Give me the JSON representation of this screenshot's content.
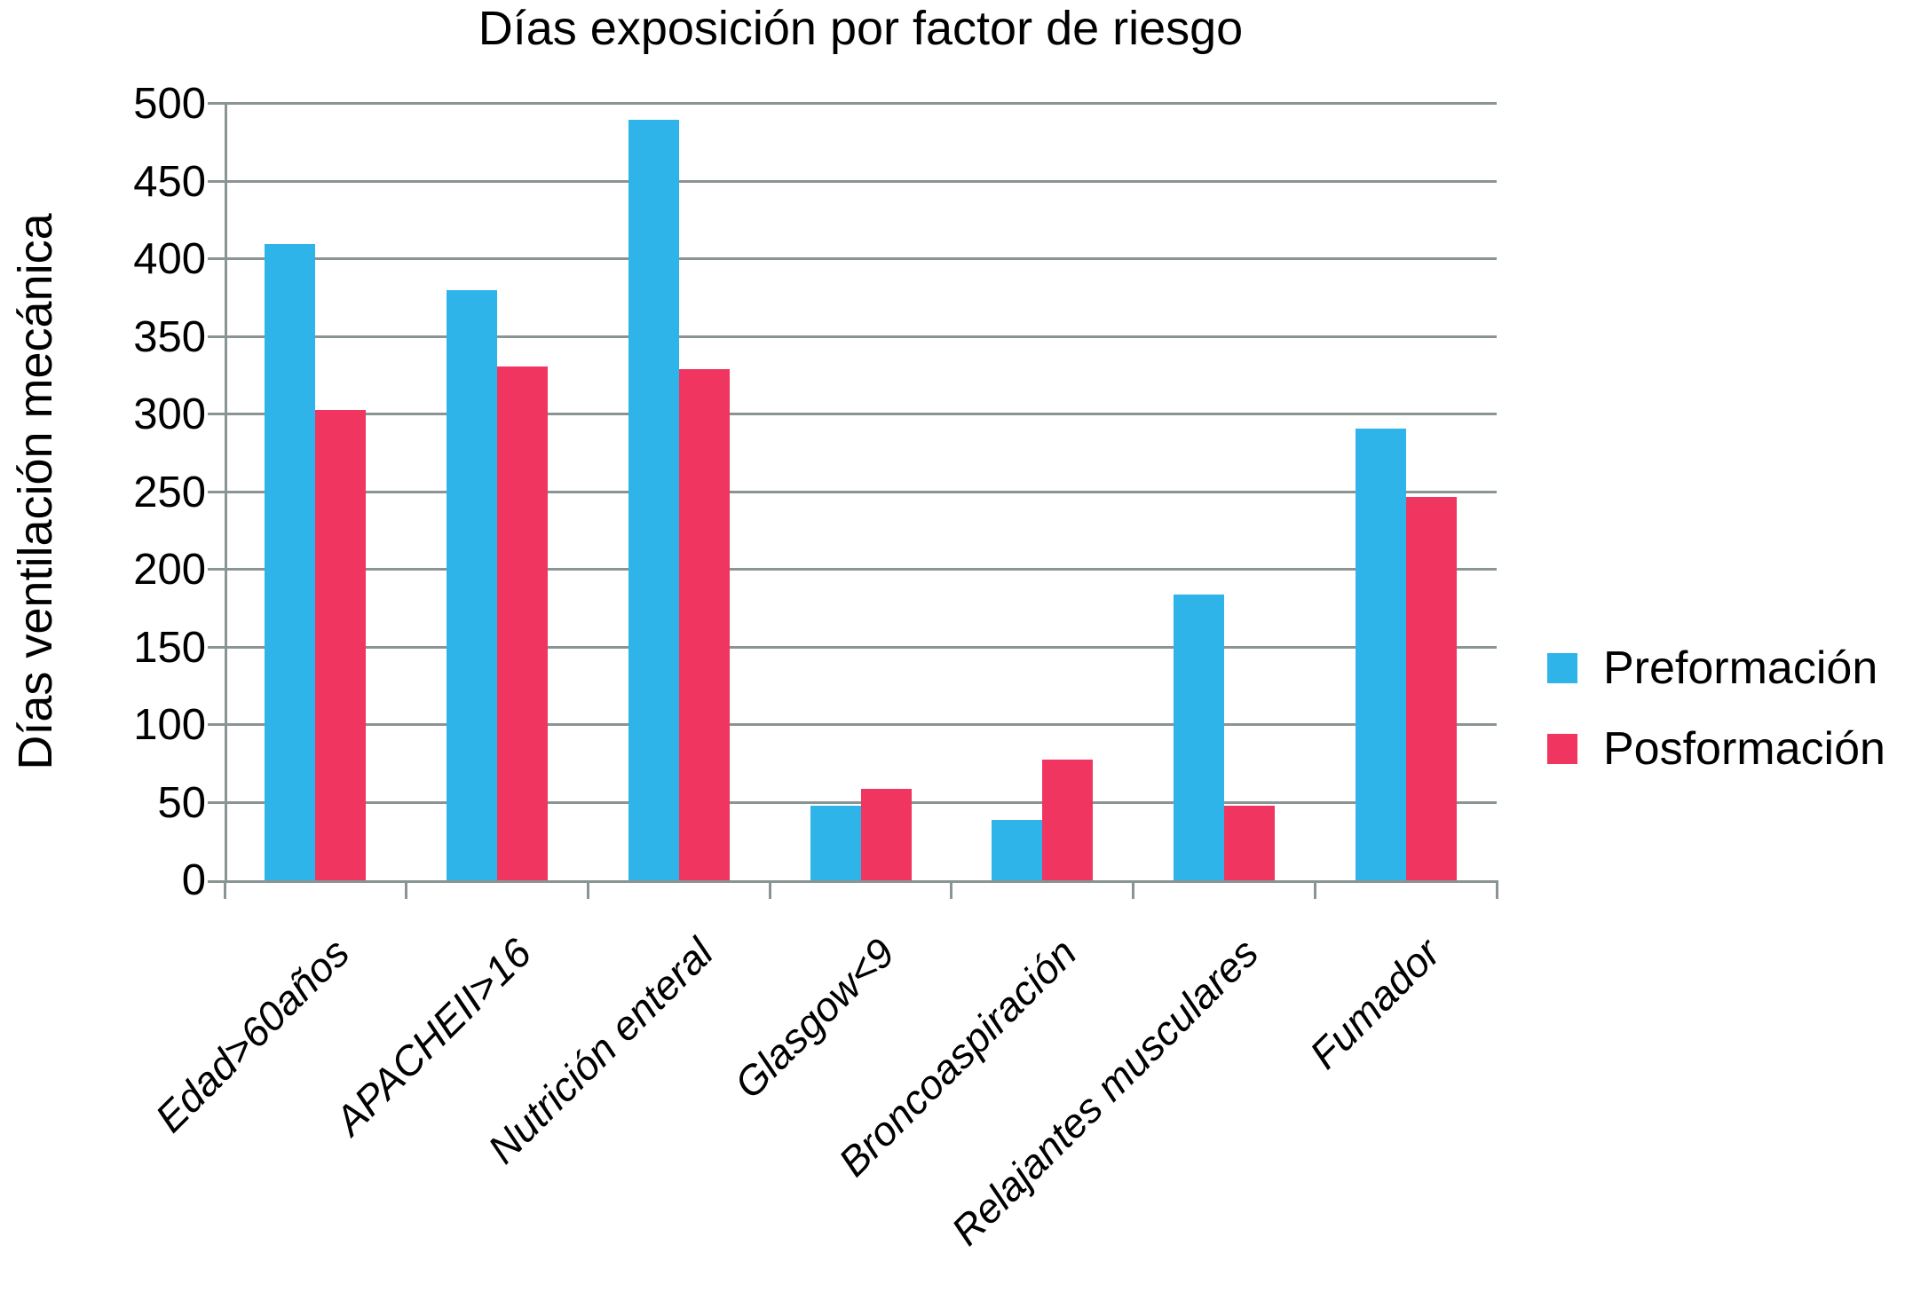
{
  "chart_data": {
    "type": "bar",
    "title": "Días exposición por factor de riesgo",
    "ylabel": "Días ventilación mecánica",
    "xlabel": "",
    "categories": [
      "Edad>60años",
      "APACHEII>16",
      "Nutrición enteral",
      "Glasgow<9",
      "Broncoaspiración",
      "Relajantes musculares",
      "Fumador"
    ],
    "series": [
      {
        "name": "Preformación",
        "color": "#2FB4EA",
        "values": [
          410,
          380,
          490,
          48,
          39,
          184,
          291
        ]
      },
      {
        "name": "Posformación",
        "color": "#EF3560",
        "values": [
          303,
          331,
          329,
          59,
          78,
          48,
          247
        ]
      }
    ],
    "ylim": [
      0,
      500
    ],
    "ytick_step": 50,
    "grid": true,
    "legend_position": "right",
    "colors": {
      "grid": "#8B9494",
      "axis": "#8B9494",
      "text": "#000000",
      "background": "#FFFFFF"
    }
  }
}
